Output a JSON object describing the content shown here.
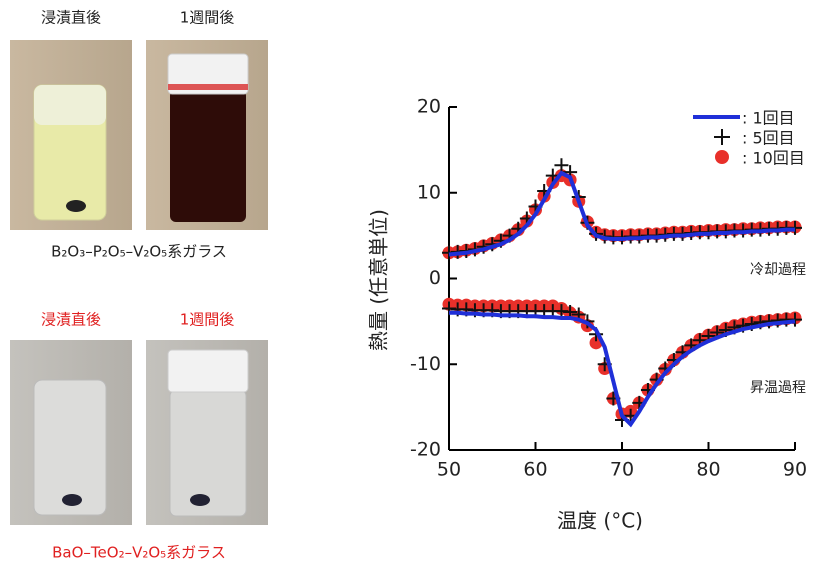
{
  "photos": {
    "top_labels": [
      "浸漬直後",
      "1週間後"
    ],
    "top_caption": "B₂O₃–P₂O₅–V₂O₅系ガラス",
    "bottom_labels": [
      "浸漬直後",
      "1週間後"
    ],
    "bottom_caption": "BaO–TeO₂–V₂O₅系ガラス"
  },
  "chart_data": {
    "type": "line",
    "xlabel": "温度 (°C)",
    "ylabel": "熱量 (任意単位)",
    "annotations": [
      "冷却過程",
      "昇温過程"
    ],
    "xlim": [
      50,
      90
    ],
    "xticks": [
      50,
      60,
      70,
      80,
      90
    ],
    "ylim": [
      -20,
      20
    ],
    "yticks": [
      -20,
      -10,
      0,
      10,
      20
    ],
    "x": [
      50,
      51,
      52,
      53,
      54,
      55,
      56,
      57,
      58,
      59,
      60,
      61,
      62,
      63,
      64,
      65,
      66,
      67,
      68,
      69,
      70,
      71,
      72,
      73,
      74,
      75,
      76,
      77,
      78,
      79,
      80,
      81,
      82,
      83,
      84,
      85,
      86,
      87,
      88,
      89,
      90
    ],
    "series": [
      {
        "name": ": 1回目",
        "color": "#1f2fd8",
        "marker": "line",
        "values": [
          [
            2.8,
            2.9,
            3.0,
            3.2,
            3.4,
            3.7,
            4.0,
            4.5,
            5.2,
            6.2,
            7.5,
            9.2,
            11.0,
            12.3,
            11.8,
            9.0,
            6.2,
            5.0,
            4.7,
            4.6,
            4.6,
            4.7,
            4.7,
            4.8,
            4.8,
            4.9,
            5.0,
            5.0,
            5.1,
            5.2,
            5.2,
            5.3,
            5.3,
            5.4,
            5.4,
            5.5,
            5.5,
            5.6,
            5.6,
            5.7,
            5.7
          ],
          [
            -4.0,
            -4.0,
            -4.1,
            -4.1,
            -4.2,
            -4.2,
            -4.3,
            -4.3,
            -4.3,
            -4.4,
            -4.4,
            -4.5,
            -4.5,
            -4.6,
            -4.6,
            -4.8,
            -5.2,
            -6.0,
            -8.0,
            -12.0,
            -16.0,
            -17.0,
            -15.5,
            -13.8,
            -12.3,
            -11.0,
            -10.0,
            -9.1,
            -8.4,
            -7.8,
            -7.3,
            -6.9,
            -6.5,
            -6.2,
            -5.9,
            -5.7,
            -5.5,
            -5.3,
            -5.2,
            -5.1,
            -5.0
          ]
        ]
      },
      {
        "name": ": 5回目",
        "color": "#111111",
        "marker": "plus",
        "values": [
          [
            3.0,
            3.1,
            3.2,
            3.4,
            3.7,
            4.0,
            4.4,
            5.0,
            5.8,
            7.0,
            8.4,
            10.2,
            12.0,
            13.2,
            12.4,
            9.5,
            6.5,
            5.2,
            4.9,
            4.8,
            4.8,
            4.9,
            4.9,
            5.0,
            5.0,
            5.1,
            5.2,
            5.2,
            5.3,
            5.4,
            5.4,
            5.5,
            5.5,
            5.6,
            5.6,
            5.7,
            5.7,
            5.8,
            5.8,
            5.9,
            5.9
          ],
          [
            -3.5,
            -3.6,
            -3.6,
            -3.7,
            -3.7,
            -3.7,
            -3.8,
            -3.8,
            -3.8,
            -3.8,
            -3.8,
            -3.8,
            -3.8,
            -3.8,
            -3.9,
            -4.2,
            -5.0,
            -6.5,
            -10.0,
            -14.0,
            -16.5,
            -16.0,
            -14.5,
            -13.0,
            -11.8,
            -10.5,
            -9.5,
            -8.6,
            -7.8,
            -7.2,
            -6.7,
            -6.3,
            -6.0,
            -5.7,
            -5.5,
            -5.3,
            -5.1,
            -5.0,
            -4.9,
            -4.8,
            -4.8
          ]
        ]
      },
      {
        "name": ": 10回目",
        "color": "#e8302a",
        "marker": "circle",
        "values": [
          [
            3.0,
            3.1,
            3.3,
            3.5,
            3.8,
            4.1,
            4.5,
            5.0,
            5.7,
            6.7,
            8.0,
            9.6,
            11.2,
            12.0,
            11.5,
            9.0,
            6.6,
            5.4,
            5.1,
            5.0,
            5.0,
            5.1,
            5.1,
            5.2,
            5.2,
            5.3,
            5.4,
            5.4,
            5.5,
            5.5,
            5.6,
            5.6,
            5.7,
            5.7,
            5.8,
            5.8,
            5.9,
            5.9,
            6.0,
            6.0,
            6.0
          ],
          [
            -3.0,
            -3.1,
            -3.1,
            -3.2,
            -3.2,
            -3.2,
            -3.2,
            -3.2,
            -3.2,
            -3.2,
            -3.2,
            -3.2,
            -3.2,
            -3.5,
            -4.0,
            -4.5,
            -5.5,
            -7.5,
            -10.5,
            -14.0,
            -15.8,
            -15.5,
            -14.5,
            -13.0,
            -11.8,
            -10.6,
            -9.5,
            -8.6,
            -7.8,
            -7.1,
            -6.6,
            -6.2,
            -5.8,
            -5.5,
            -5.3,
            -5.1,
            -5.0,
            -4.9,
            -4.8,
            -4.7,
            -4.6
          ]
        ]
      }
    ]
  }
}
